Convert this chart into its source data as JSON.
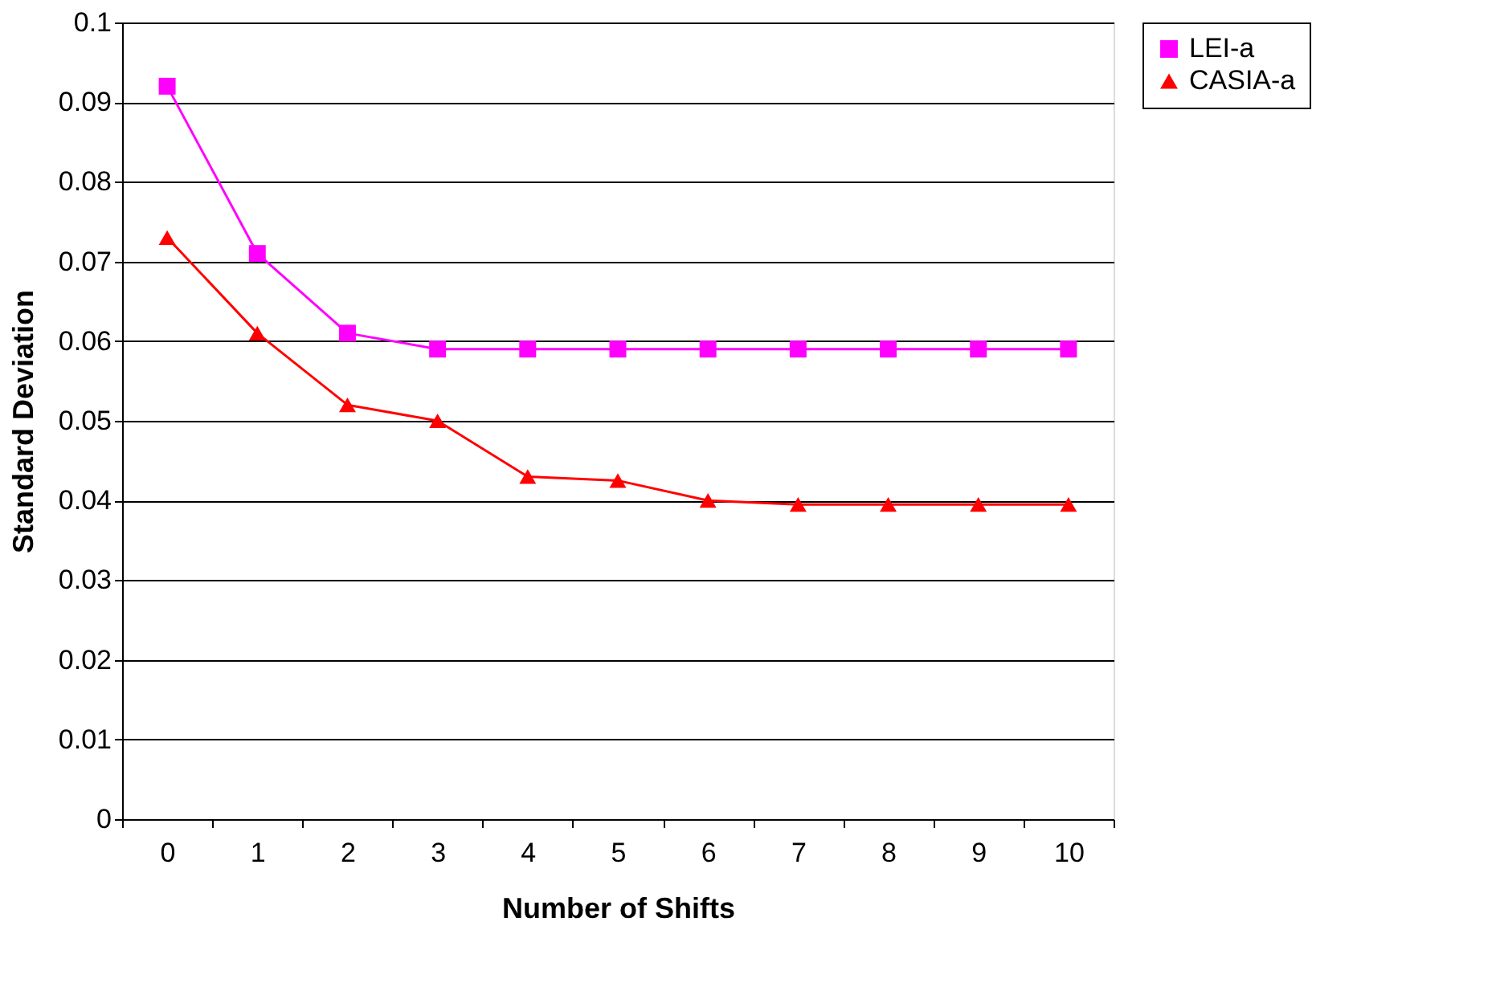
{
  "chart_data": {
    "type": "line",
    "xlabel": "Number of Shifts",
    "ylabel": "Standard Deviation",
    "categories": [
      "0",
      "1",
      "2",
      "3",
      "4",
      "5",
      "6",
      "7",
      "8",
      "9",
      "10"
    ],
    "series": [
      {
        "name": "LEI-a",
        "color": "#ff00ff",
        "marker": "square",
        "values": [
          0.092,
          0.071,
          0.061,
          0.059,
          0.059,
          0.059,
          0.059,
          0.059,
          0.059,
          0.059,
          0.059
        ]
      },
      {
        "name": "CASIA-a",
        "color": "#ff0000",
        "marker": "triangle",
        "values": [
          0.073,
          0.061,
          0.052,
          0.05,
          0.043,
          0.0425,
          0.04,
          0.0395,
          0.0395,
          0.0395,
          0.0395
        ]
      }
    ],
    "ylim": [
      0,
      0.1
    ],
    "yticks": [
      0,
      0.01,
      0.02,
      0.03,
      0.04,
      0.05,
      0.06,
      0.07,
      0.08,
      0.09,
      0.1
    ],
    "grid": "y",
    "legend": "right",
    "line_style": "solid"
  }
}
